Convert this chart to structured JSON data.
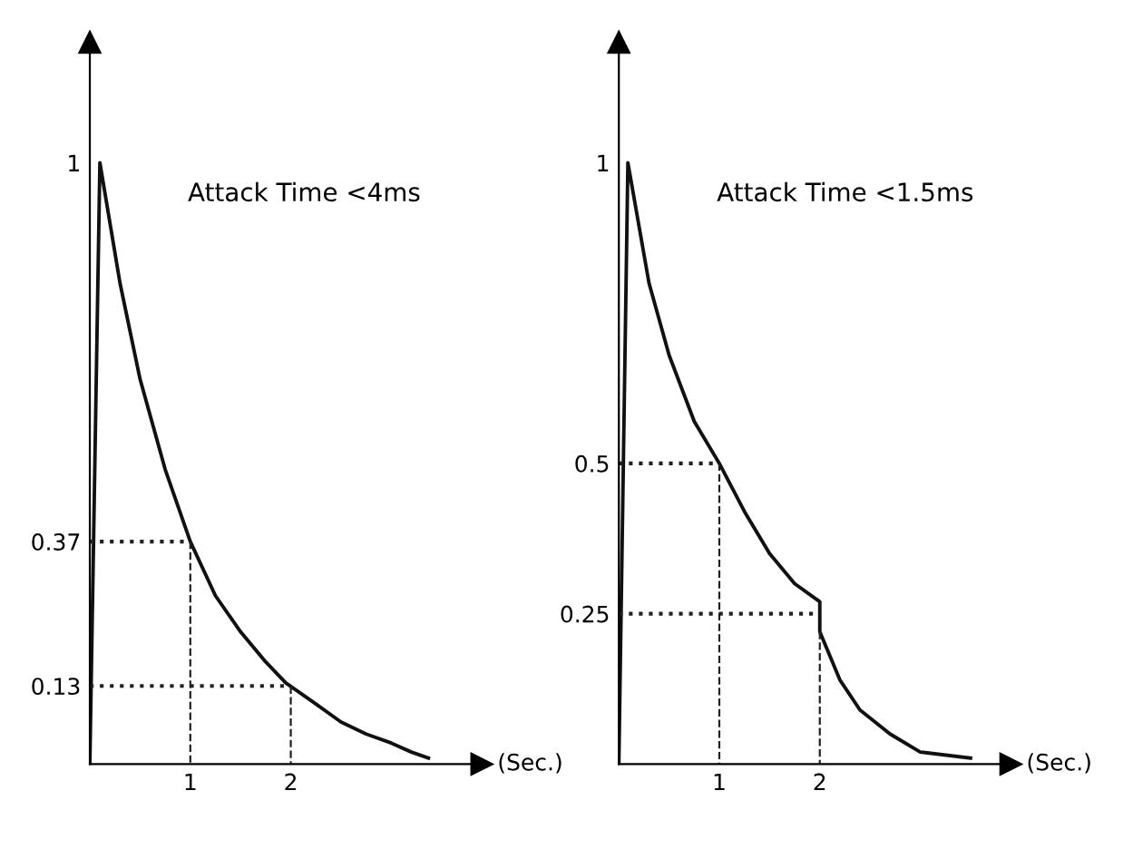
{
  "chart_data": [
    {
      "type": "line",
      "xlabel": "(Sec.)",
      "annotations": [
        "Attack Time <4ms"
      ],
      "x": [
        0,
        0.1,
        0.3,
        0.5,
        0.75,
        1,
        1.25,
        1.5,
        1.75,
        1.95,
        2.25,
        2.5,
        2.75,
        3,
        3.2,
        3.37
      ],
      "series": [
        {
          "color": "#111111",
          "values": [
            0,
            1,
            0.8,
            0.64,
            0.49,
            0.37,
            0.28,
            0.22,
            0.17,
            0.135,
            0.1,
            0.07,
            0.05,
            0.035,
            0.02,
            0.01
          ]
        }
      ],
      "xlim": [
        0,
        3.9
      ],
      "ylim": [
        0,
        1.2
      ],
      "xticks": [
        1,
        2
      ],
      "yticks": [
        0.13,
        0.37,
        1
      ],
      "ref_lines": [
        {
          "axis": "y",
          "value": 0.37,
          "line_style": "dotted"
        },
        {
          "axis": "y",
          "value": 0.13,
          "line_style": "dotted"
        },
        {
          "axis": "x",
          "value": 1,
          "line_style": "dashed"
        },
        {
          "axis": "x",
          "value": 2,
          "line_style": "dashed"
        }
      ],
      "grid": false,
      "legend": false,
      "marker": "none",
      "line_style": "solid"
    },
    {
      "type": "line",
      "xlabel": "(Sec.)",
      "annotations": [
        "Attack Time <1.5ms"
      ],
      "x": [
        0,
        0.09,
        0.3,
        0.5,
        0.75,
        1,
        1.25,
        1.5,
        1.75,
        2,
        2,
        2.2,
        2.4,
        2.7,
        3,
        3.5
      ],
      "series": [
        {
          "color": "#111111",
          "values": [
            0,
            1,
            0.8,
            0.68,
            0.57,
            0.5,
            0.42,
            0.35,
            0.3,
            0.27,
            0.22,
            0.14,
            0.09,
            0.05,
            0.02,
            0.01
          ]
        }
      ],
      "xlim": [
        0,
        3.9
      ],
      "ylim": [
        0,
        1.2
      ],
      "xticks": [
        1,
        2
      ],
      "yticks": [
        0.25,
        0.5,
        1
      ],
      "ref_lines": [
        {
          "axis": "y",
          "value": 0.5,
          "line_style": "dotted"
        },
        {
          "axis": "y",
          "value": 0.25,
          "line_style": "dotted"
        },
        {
          "axis": "x",
          "value": 1,
          "line_style": "dashed"
        },
        {
          "axis": "x",
          "value": 2,
          "line_style": "dashed"
        }
      ],
      "grid": false,
      "legend": false,
      "marker": "none",
      "line_style": "solid"
    }
  ]
}
